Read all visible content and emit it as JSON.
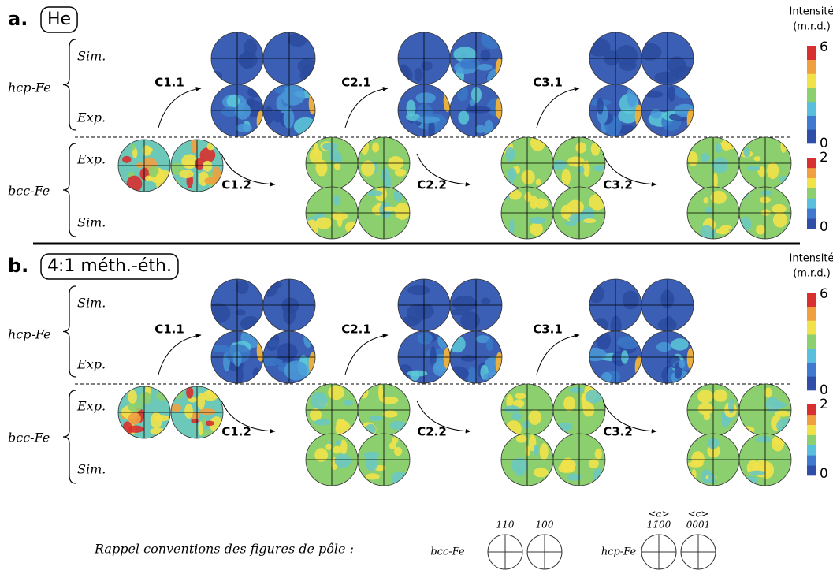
{
  "panels": [
    {
      "label": "a.",
      "condition": "He",
      "colorbar_title": "Intensité",
      "colorbar_unit": "(m.r.d.)",
      "hcp": {
        "phase": "hcp-Fe",
        "rows": [
          "Sim.",
          "Exp."
        ],
        "steps": [
          "C1.1",
          "C2.1",
          "C3.1"
        ],
        "scale_max": 6,
        "scale_min": 0
      },
      "bcc": {
        "phase": "bcc-Fe",
        "rows": [
          "Exp.",
          "Sim."
        ],
        "steps": [
          "C1.2",
          "C2.2",
          "C3.2"
        ],
        "scale_max": 2,
        "scale_min": 0
      }
    },
    {
      "label": "b.",
      "condition": "4:1 méth.-éth.",
      "colorbar_title": "Intensité",
      "colorbar_unit": "(m.r.d.)",
      "hcp": {
        "phase": "hcp-Fe",
        "rows": [
          "Sim.",
          "Exp."
        ],
        "steps": [
          "C1.1",
          "C2.1",
          "C3.1"
        ],
        "scale_max": 6,
        "scale_min": 0
      },
      "bcc": {
        "phase": "bcc-Fe",
        "rows": [
          "Exp.",
          "Sim."
        ],
        "steps": [
          "C1.2",
          "C2.2",
          "C3.2"
        ],
        "scale_max": 2,
        "scale_min": 0
      }
    }
  ],
  "legend": {
    "title": "Rappel conventions des figures de pôle :",
    "bcc": {
      "phase": "bcc-Fe",
      "poles": [
        "110",
        "100"
      ]
    },
    "hcp": {
      "phase": "hcp-Fe",
      "directions": [
        "<a>",
        "<c>"
      ],
      "poles": [
        "11̄00",
        "0001"
      ]
    }
  }
}
